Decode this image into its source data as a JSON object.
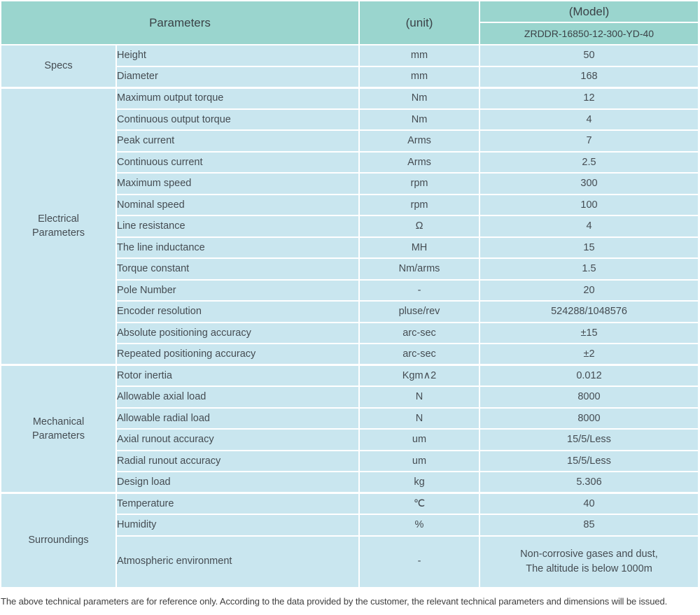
{
  "table": {
    "header": {
      "parameters_label": "Parameters",
      "unit_label": "(unit)",
      "model_label": "(Model)",
      "model_value": "ZRDDR-16850-12-300-YD-40"
    },
    "sections": [
      {
        "group": "Specs",
        "rows": [
          {
            "name": "Height",
            "unit": "mm",
            "value": "50"
          },
          {
            "name": "Diameter",
            "unit": "mm",
            "value": "168"
          }
        ]
      },
      {
        "group": "Electrical\nParameters",
        "rows": [
          {
            "name": "Maximum output torque",
            "unit": "Nm",
            "value": "12"
          },
          {
            "name": "Continuous output torque",
            "unit": "Nm",
            "value": "4"
          },
          {
            "name": "Peak current",
            "unit": "Arms",
            "value": "7"
          },
          {
            "name": "Continuous current",
            "unit": "Arms",
            "value": "2.5"
          },
          {
            "name": "Maximum speed",
            "unit": "rpm",
            "value": "300"
          },
          {
            "name": "Nominal speed",
            "unit": "rpm",
            "value": "100"
          },
          {
            "name": "Line resistance",
            "unit": "Ω",
            "value": "4"
          },
          {
            "name": "The line inductance",
            "unit": "MH",
            "value": "15"
          },
          {
            "name": "Torque constant",
            "unit": "Nm/arms",
            "value": "1.5"
          },
          {
            "name": "Pole Number",
            "unit": "-",
            "value": "20"
          },
          {
            "name": "Encoder resolution",
            "unit": "pluse/rev",
            "value": "524288/1048576"
          },
          {
            "name": "Absolute positioning accuracy",
            "unit": "arc-sec",
            "value": "±15"
          },
          {
            "name": "Repeated positioning accuracy",
            "unit": "arc-sec",
            "value": "±2"
          }
        ]
      },
      {
        "group": "Mechanical\nParameters",
        "rows": [
          {
            "name": "Rotor inertia",
            "unit": "Kgm∧2",
            "value": "0.012"
          },
          {
            "name": "Allowable axial load",
            "unit": "N",
            "value": "8000"
          },
          {
            "name": "Allowable radial load",
            "unit": "N",
            "value": "8000"
          },
          {
            "name": "Axial runout accuracy",
            "unit": "um",
            "value": "15/5/Less"
          },
          {
            "name": "Radial runout accuracy",
            "unit": "um",
            "value": "15/5/Less"
          },
          {
            "name": "Design load",
            "unit": "kg",
            "value": "5.306"
          }
        ]
      },
      {
        "group": "Surroundings",
        "rows": [
          {
            "name": "Temperature",
            "unit": "℃",
            "value": "40"
          },
          {
            "name": "Humidity",
            "unit": "%",
            "value": "85"
          },
          {
            "name": "Atmospheric environment",
            "unit": "-",
            "value": "Non-corrosive gases and dust,\nThe altitude is below 1000m"
          }
        ]
      }
    ]
  },
  "page": {
    "footer_note": "The above technical parameters are for reference only. According to the data provided by the customer, the relevant technical parameters and dimensions will be issued."
  },
  "colors": {
    "header_bg": "#9ad5ce",
    "cell_bg": "#c9e6ef",
    "header_text": "#3b4247",
    "cell_text": "#454c52",
    "divider": "#ffffff"
  }
}
